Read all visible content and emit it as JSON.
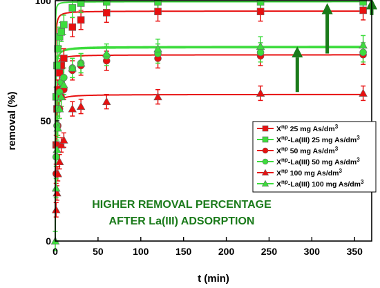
{
  "chart_data": {
    "type": "scatter",
    "xlabel": "t (min)",
    "ylabel": "removal (%)",
    "xlim": [
      0,
      370
    ],
    "ylim": [
      0,
      100
    ],
    "xticks": [
      0,
      50,
      100,
      150,
      200,
      250,
      300,
      350
    ],
    "yticks": [
      0,
      50,
      100
    ],
    "grid": false,
    "legend_position": "right",
    "annotation_lines": [
      "HIGHER REMOVAL PERCENTAGE",
      "AFTER La(III) ADSORPTION"
    ],
    "series": [
      {
        "name": "Xnp 25 mg As/dm3",
        "label_base": "X",
        "label_sup": "np",
        "label_rest": " 25 mg As/dm",
        "label_unit_sup": "3",
        "color": "#e81010",
        "marker": "square",
        "x": [
          1,
          2,
          3,
          5,
          7,
          10,
          20,
          30,
          60,
          120,
          240,
          360
        ],
        "y": [
          40,
          55,
          63,
          70,
          73,
          76,
          89,
          92,
          95,
          95.5,
          95.5,
          96
        ],
        "err": [
          4,
          4,
          4,
          4,
          4,
          4,
          4,
          4,
          4,
          4,
          4,
          4
        ]
      },
      {
        "name": "Xnp-La(III) 25 mg As/dm3",
        "label_base": "X",
        "label_sup": "np",
        "label_rest": "-La(III) 25 mg As/dm",
        "label_unit_sup": "3",
        "color": "#3ddc3d",
        "marker": "square",
        "x": [
          1,
          2,
          3,
          5,
          7,
          10,
          20,
          30,
          60,
          120,
          240,
          360
        ],
        "y": [
          60,
          73,
          80,
          85,
          87,
          90,
          97,
          99,
          99.5,
          99.5,
          99.5,
          99.5
        ],
        "err": [
          4,
          4,
          4,
          4,
          4,
          4,
          4,
          4,
          4,
          4,
          4,
          4
        ]
      },
      {
        "name": "Xnp 50 mg As/dm3",
        "label_base": "X",
        "label_sup": "np",
        "label_rest": " 50 mg As/dm",
        "label_unit_sup": "3",
        "color": "#e81010",
        "marker": "circle",
        "x": [
          1,
          2,
          3,
          5,
          7,
          10,
          20,
          30,
          60,
          120,
          240,
          360
        ],
        "y": [
          28,
          40,
          48,
          55,
          60,
          63,
          71,
          73,
          75,
          76,
          77,
          77.5
        ],
        "err": [
          4,
          4,
          4,
          4,
          4,
          4,
          4,
          4,
          4,
          4,
          4,
          4
        ]
      },
      {
        "name": "Xnp-La(III) 50 mg As/dm3",
        "label_base": "X",
        "label_sup": "np",
        "label_rest": "-La(III) 50 mg As/dm",
        "label_unit_sup": "3",
        "color": "#3ddc3d",
        "marker": "circle",
        "x": [
          1,
          2,
          3,
          5,
          7,
          10,
          20,
          30,
          60,
          120,
          240,
          360
        ],
        "y": [
          35,
          48,
          55,
          62,
          66,
          68,
          72,
          74,
          77,
          78,
          78.5,
          78.5
        ],
        "err": [
          4,
          4,
          4,
          4,
          4,
          4,
          4,
          4,
          4,
          4,
          4,
          4
        ]
      },
      {
        "name": "Xnp 100 mg As/dm3",
        "label_base": "X",
        "label_sup": "np",
        "label_rest": " 100 mg As/dm",
        "label_unit_sup": "3",
        "color": "#e81010",
        "marker": "triangle",
        "x": [
          1,
          2,
          3,
          5,
          7,
          10,
          20,
          30,
          60,
          120,
          240,
          360
        ],
        "y": [
          13,
          20,
          28,
          33,
          40,
          42,
          55,
          56,
          58,
          60,
          61.5,
          61.5
        ],
        "err": [
          3,
          3,
          3,
          3,
          3,
          3,
          3,
          3,
          3,
          3,
          3,
          3
        ]
      },
      {
        "name": "Xnp-La(III) 100 mg As/dm3",
        "label_base": "X",
        "label_sup": "np",
        "label_rest": "-La(III) 100 mg As/dm",
        "label_unit_sup": "3",
        "color": "#3ddc3d",
        "marker": "triangle",
        "x": [
          0,
          1,
          2,
          3,
          5,
          7,
          10,
          20,
          30,
          60,
          120,
          240,
          360
        ],
        "y": [
          0,
          22,
          38,
          47,
          55,
          60,
          65,
          72,
          74,
          78,
          80,
          81,
          81.5
        ],
        "err": [
          4,
          4,
          4,
          4,
          4,
          4,
          4,
          4,
          4,
          4,
          4,
          4,
          4
        ]
      }
    ],
    "fit_curves": [
      {
        "color": "#e81010",
        "qmax": 95.7,
        "k": 0.09
      },
      {
        "color": "#3ddc3d",
        "qmax": 99.6,
        "k": 0.25
      },
      {
        "color": "#e81010",
        "qmax": 77.5,
        "k": 0.08
      },
      {
        "color": "#3ddc3d",
        "qmax": 80.5,
        "k": 0.07
      },
      {
        "color": "#e81010",
        "qmax": 61.0,
        "k": 0.065
      },
      {
        "color": "#3ddc3d",
        "qmax": 81.0,
        "k": 0.06
      }
    ],
    "arrows": [
      {
        "x": 283,
        "y_from": 62,
        "y_to": 81,
        "color": "#1a7a1a"
      },
      {
        "x": 318,
        "y_from": 78,
        "y_to": 99,
        "color": "#1a7a1a"
      },
      {
        "x": 370,
        "y_from": 94,
        "y_to": 101,
        "color": "#1a7a1a"
      }
    ]
  }
}
